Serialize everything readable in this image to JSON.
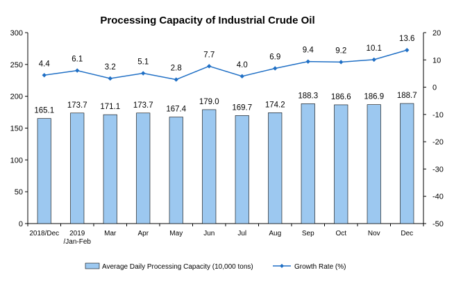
{
  "chart_data": {
    "type": "bar",
    "title": "Processing Capacity of Industrial Crude Oil",
    "categories": [
      [
        "2018/Dec"
      ],
      [
        "2019",
        "/Jan-Feb"
      ],
      [
        "Mar"
      ],
      [
        "Apr"
      ],
      [
        "May"
      ],
      [
        "Jun"
      ],
      [
        "Jul"
      ],
      [
        "Aug"
      ],
      [
        "Sep"
      ],
      [
        "Oct"
      ],
      [
        "Nov"
      ],
      [
        "Dec"
      ]
    ],
    "series": [
      {
        "name": "Average Daily Processing Capacity (10,000 tons)",
        "type": "bar",
        "axis": "left",
        "color": "#9CC8F0",
        "values": [
          165.1,
          173.7,
          171.1,
          173.7,
          167.4,
          179.0,
          169.7,
          174.2,
          188.3,
          186.6,
          186.9,
          188.7
        ],
        "labels": [
          "165.1",
          "173.7",
          "171.1",
          "173.7",
          "167.4",
          "179.0",
          "169.7",
          "174.2",
          "188.3",
          "186.6",
          "186.9",
          "188.7"
        ]
      },
      {
        "name": "Growth Rate (%)",
        "type": "line",
        "axis": "right",
        "color": "#1F6FC5",
        "values": [
          4.4,
          6.1,
          3.2,
          5.1,
          2.8,
          7.7,
          4.0,
          6.9,
          9.4,
          9.2,
          10.1,
          13.6
        ],
        "labels": [
          "4.4",
          "6.1",
          "3.2",
          "5.1",
          "2.8",
          "7.7",
          "4.0",
          "6.9",
          "9.4",
          "9.2",
          "10.1",
          "13.6"
        ]
      }
    ],
    "y_left": {
      "ylim": [
        0,
        300
      ],
      "ticks": [
        0,
        50,
        100,
        150,
        200,
        250,
        300
      ]
    },
    "y_right": {
      "ylim": [
        -50,
        20
      ],
      "ticks": [
        -50,
        -40,
        -30,
        -20,
        -10,
        0,
        10,
        20
      ]
    },
    "legend": {
      "position": "bottom"
    },
    "grid": false
  }
}
